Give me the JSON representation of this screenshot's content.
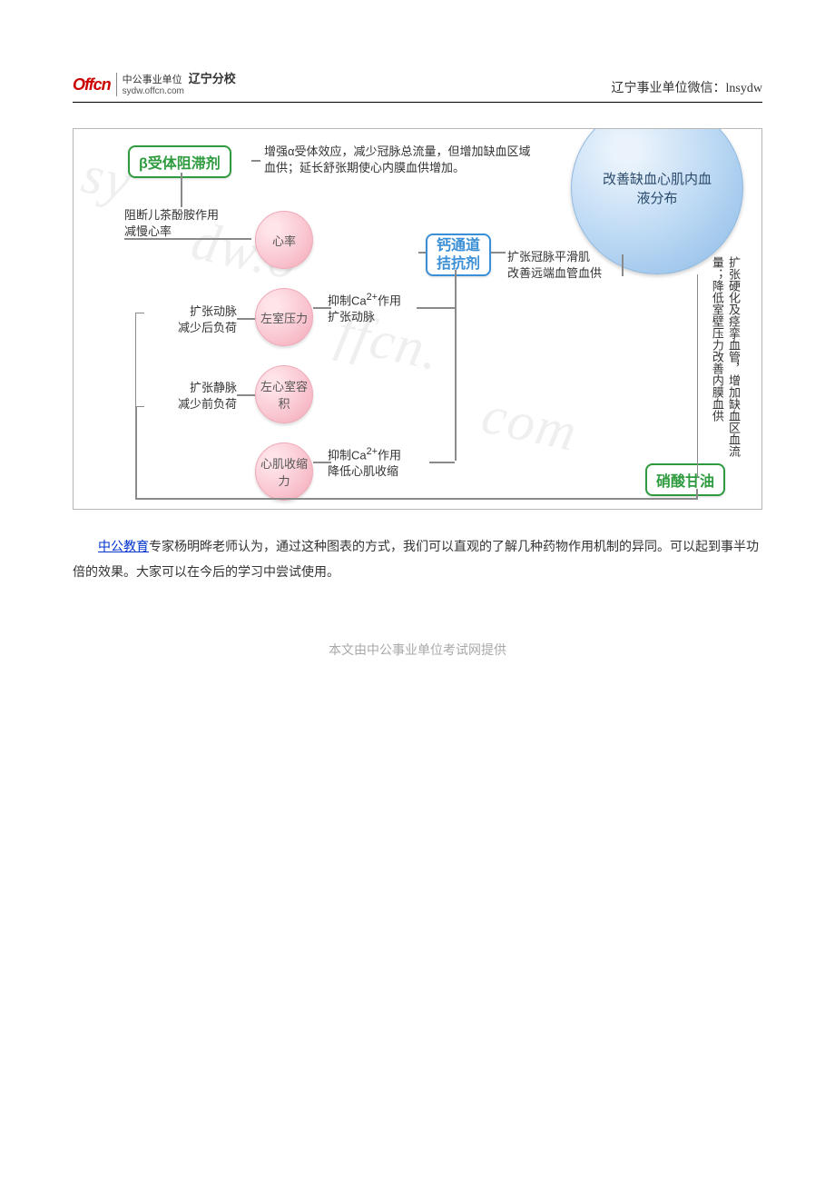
{
  "header": {
    "logo_main": "Offcn",
    "logo_sub_top": "中公事业单位",
    "logo_sub_right": "辽宁分校",
    "logo_url": "sydw.offcn.com",
    "wechat": "辽宁事业单位微信：lnsydw"
  },
  "diagram": {
    "colors": {
      "beta_border": "#2e9b3e",
      "beta_text": "#2e9b3e",
      "ca_border": "#3a8fd6",
      "ca_text": "#3a8fd6",
      "nitro_border": "#2e9b3e",
      "nitro_text": "#2e9b3e",
      "pink_circle_bg": "#f9c5cf",
      "blue_circle_bg": "#b9d7f3",
      "line": "#8a8a8a",
      "bg": "#ffffff"
    },
    "drugs": {
      "beta": "β受体阻滞剂",
      "ca": "钙通道拮抗剂",
      "nitro": "硝酸甘油"
    },
    "big_blue": "改善缺血心肌内血液分布",
    "nodes": {
      "hr": "心率",
      "lvp": "左室压力",
      "lvv": "左心室容积",
      "contract": "心肌收缩力"
    },
    "mech": {
      "beta_top": "增强α受体效应，减少冠脉总流量，但增加缺血区域血供；延长舒张期使心内膜血供增加。",
      "beta_hr": "阻断儿茶酚胺作用\n减慢心率",
      "ca_lvp": "抑制Ca²⁺作用\n扩张动脉",
      "ca_contract": "抑制Ca²⁺作用\n降低心肌收缩",
      "ca_right": "扩张冠脉平滑肌\n改善远端血管血供",
      "nitro_art": "扩张动脉\n减少后负荷",
      "nitro_ven": "扩张静脉\n减少前负荷",
      "nitro_right": "扩张硬化及痉挛血管，增加缺血区血流量；降低室壁压力改善内膜血供"
    }
  },
  "body": {
    "link_text": "中公教育",
    "paragraph_rest": "专家杨明晔老师认为，通过这种图表的方式，我们可以直观的了解几种药物作用机制的异同。可以起到事半功倍的效果。大家可以在今后的学习中尝试使用。"
  },
  "footer": "本文由中公事业单位考试网提供",
  "watermarks": [
    "sy",
    "dw.o",
    "ffcn.",
    "com"
  ]
}
